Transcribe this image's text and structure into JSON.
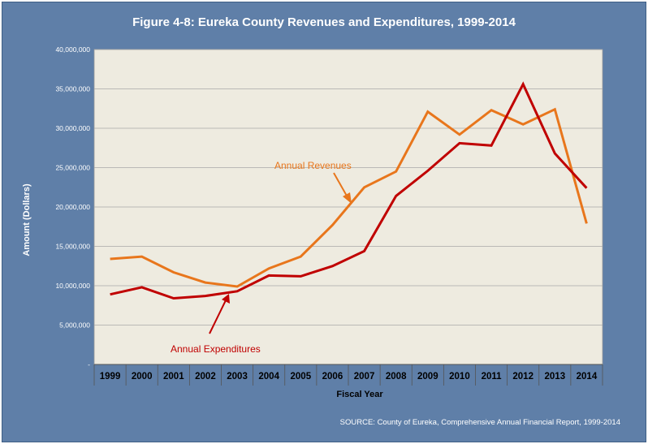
{
  "chart_data": {
    "type": "line",
    "title": "Figure 4-8: Eureka County Revenues and Expenditures, 1999-2014",
    "xlabel": "Fiscal Year",
    "ylabel": "Amount (Dollars)",
    "ylim": [
      0,
      40000000
    ],
    "yticks": [
      0,
      5000000,
      10000000,
      15000000,
      20000000,
      25000000,
      30000000,
      35000000,
      40000000
    ],
    "ytick_labels": [
      "-",
      "5,000,000",
      "10,000,000",
      "15,000,000",
      "20,000,000",
      "25,000,000",
      "30,000,000",
      "35,000,000",
      "40,000,000"
    ],
    "categories": [
      "1999",
      "2000",
      "2001",
      "2002",
      "2003",
      "2004",
      "2005",
      "2006",
      "2007",
      "2008",
      "2009",
      "2010",
      "2011",
      "2012",
      "2013",
      "2014"
    ],
    "grid": "horizontal",
    "series": [
      {
        "name": "Annual Revenues",
        "color": "#e8761c",
        "values": [
          13400000,
          13700000,
          11700000,
          10400000,
          9900000,
          12200000,
          13700000,
          17700000,
          22500000,
          24500000,
          32100000,
          29200000,
          32300000,
          30500000,
          32400000,
          17900000
        ]
      },
      {
        "name": "Annual Expenditures",
        "color": "#c00000",
        "values": [
          8900000,
          9800000,
          8400000,
          8700000,
          9300000,
          11300000,
          11200000,
          12500000,
          14400000,
          21400000,
          24600000,
          28100000,
          27800000,
          35600000,
          26800000,
          22400000
        ]
      }
    ],
    "annotations": [
      {
        "text": "Annual Revenues",
        "color": "#e8761c"
      },
      {
        "text": "Annual Expenditures",
        "color": "#c00000"
      }
    ],
    "source": "SOURCE: County of Eureka, Comprehensive Annual Financial Report, 1999-2014",
    "colors": {
      "frame": "#5f7fa8",
      "plot_bg": "#eeebe0",
      "grid": "#a9a9a9",
      "text": "#000000"
    }
  }
}
